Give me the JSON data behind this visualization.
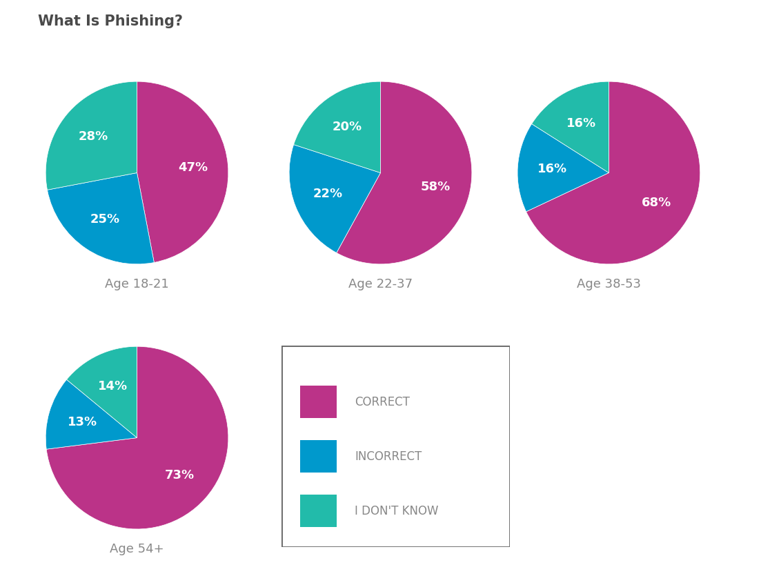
{
  "title": "What Is Phishing?",
  "title_fontsize": 15,
  "title_fontweight": "bold",
  "title_color": "#4a4a4a",
  "background_color": "#ffffff",
  "colors": {
    "correct": "#bb3388",
    "incorrect": "#0099cc",
    "idk": "#22bbaa"
  },
  "charts": [
    {
      "label": "Age 18-21",
      "values": [
        47,
        25,
        28
      ],
      "startangle": 90
    },
    {
      "label": "Age 22-37",
      "values": [
        58,
        22,
        20
      ],
      "startangle": 90
    },
    {
      "label": "Age 38-53",
      "values": [
        68,
        16,
        16
      ],
      "startangle": 90
    },
    {
      "label": "Age 54+",
      "values": [
        73,
        13,
        14
      ],
      "startangle": 90
    }
  ],
  "legend_labels": [
    "CORRECT",
    "INCORRECT",
    "I DON'T KNOW"
  ],
  "pct_fontsize": 13,
  "pct_fontweight": "bold",
  "pct_color": "white",
  "label_fontsize": 13,
  "label_color": "#888888",
  "legend_border_color": "#666666",
  "legend_text_color": "#888888"
}
